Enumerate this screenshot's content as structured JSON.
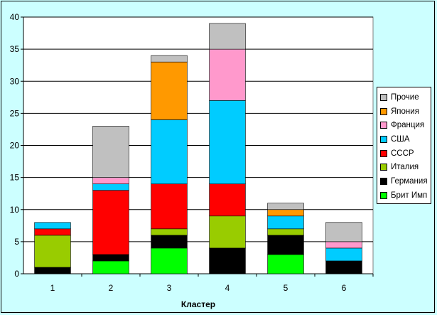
{
  "chart_data": {
    "type": "bar",
    "stacked": true,
    "title": "",
    "xlabel": "Кластер",
    "ylabel": "",
    "ylim": [
      0,
      40
    ],
    "yticks": [
      0,
      5,
      10,
      15,
      20,
      25,
      30,
      35,
      40
    ],
    "categories": [
      "1",
      "2",
      "3",
      "4",
      "5",
      "6"
    ],
    "grid": true,
    "legend_position": "right",
    "series": [
      {
        "name": "Брит Имп",
        "color": "#00FF00",
        "values": [
          0,
          2,
          4,
          0,
          3,
          0
        ]
      },
      {
        "name": "Германия",
        "color": "#000000",
        "values": [
          1,
          1,
          2,
          4,
          3,
          2
        ]
      },
      {
        "name": "Италия",
        "color": "#99CC00",
        "values": [
          5,
          0,
          1,
          5,
          1,
          0
        ]
      },
      {
        "name": "СССР",
        "color": "#FF0000",
        "values": [
          1,
          10,
          7,
          5,
          0,
          0
        ]
      },
      {
        "name": "США",
        "color": "#00CCFF",
        "values": [
          1,
          1,
          10,
          13,
          2,
          2
        ]
      },
      {
        "name": "Франция",
        "color": "#FF99CC",
        "values": [
          0,
          1,
          0,
          8,
          0,
          1
        ]
      },
      {
        "name": "Япония",
        "color": "#FF9900",
        "values": [
          0,
          0,
          9,
          0,
          1,
          0
        ]
      },
      {
        "name": "Прочие",
        "color": "#C0C0C0",
        "values": [
          0,
          8,
          1,
          4,
          1,
          3
        ]
      }
    ]
  }
}
